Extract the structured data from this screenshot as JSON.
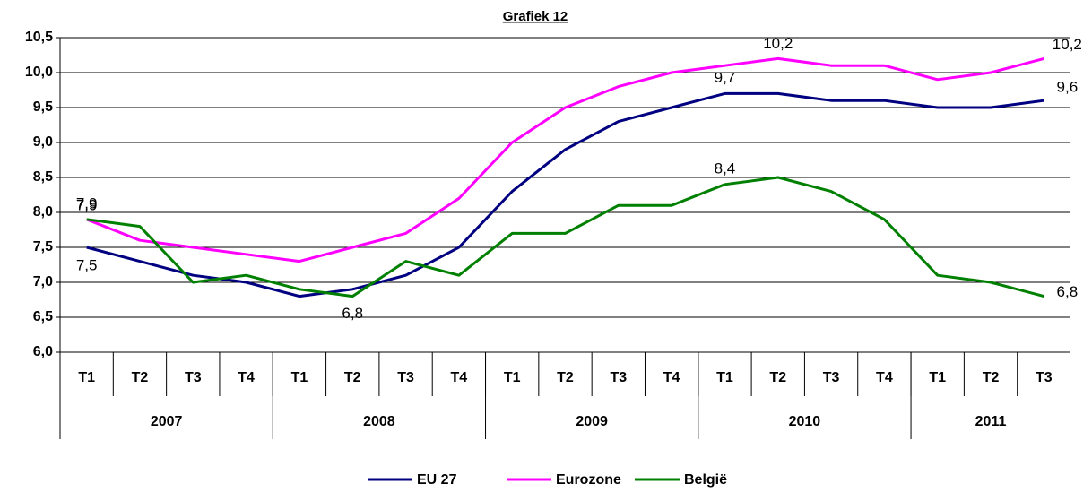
{
  "chart_data": {
    "type": "line",
    "title": "Grafiek 12",
    "categories": [
      "T1",
      "T2",
      "T3",
      "T4",
      "T1",
      "T2",
      "T3",
      "T4",
      "T1",
      "T2",
      "T3",
      "T4",
      "T1",
      "T2",
      "T3",
      "T4",
      "T1",
      "T2",
      "T3"
    ],
    "groups": [
      {
        "label": "2007",
        "count": 4
      },
      {
        "label": "2008",
        "count": 4
      },
      {
        "label": "2009",
        "count": 4
      },
      {
        "label": "2010",
        "count": 4
      },
      {
        "label": "2011",
        "count": 3
      }
    ],
    "series": [
      {
        "name": "EU 27",
        "color": "#000080",
        "values": [
          7.5,
          7.3,
          7.1,
          7.0,
          6.8,
          6.9,
          7.1,
          7.5,
          8.3,
          8.9,
          9.3,
          9.5,
          9.7,
          9.7,
          9.6,
          9.6,
          9.5,
          9.5,
          9.6
        ],
        "value_labels": [
          "7,5",
          null,
          null,
          null,
          null,
          null,
          null,
          null,
          null,
          null,
          null,
          null,
          "9,7",
          null,
          null,
          null,
          null,
          null,
          "9,6"
        ]
      },
      {
        "name": "Eurozone",
        "color": "#ff00ff",
        "values": [
          7.9,
          7.6,
          7.5,
          7.4,
          7.3,
          7.5,
          7.7,
          8.2,
          9.0,
          9.5,
          9.8,
          10.0,
          10.1,
          10.2,
          10.1,
          10.1,
          9.9,
          10.0,
          10.2
        ],
        "value_labels": [
          "7,9",
          null,
          null,
          null,
          null,
          null,
          null,
          null,
          null,
          null,
          null,
          null,
          null,
          "10,2",
          null,
          null,
          null,
          null,
          "10,2"
        ]
      },
      {
        "name": "België",
        "color": "#008000",
        "values": [
          7.9,
          7.8,
          7.0,
          7.1,
          6.9,
          6.8,
          7.3,
          7.1,
          7.7,
          7.7,
          8.1,
          8.1,
          8.4,
          8.5,
          8.3,
          7.9,
          7.1,
          7.0,
          6.8
        ],
        "value_labels": [
          "7,9",
          null,
          null,
          null,
          null,
          "6,8",
          null,
          null,
          null,
          null,
          null,
          null,
          "8,4",
          null,
          null,
          null,
          null,
          null,
          "6,8"
        ]
      }
    ],
    "ylim": [
      6.0,
      10.5
    ],
    "yticks": [
      {
        "value": 6.0,
        "label": "6,0"
      },
      {
        "value": 6.5,
        "label": "6,5"
      },
      {
        "value": 7.0,
        "label": "7,0"
      },
      {
        "value": 7.5,
        "label": "7,5"
      },
      {
        "value": 8.0,
        "label": "8,0"
      },
      {
        "value": 8.5,
        "label": "8,5"
      },
      {
        "value": 9.0,
        "label": "9,0"
      },
      {
        "value": 9.5,
        "label": "9,5"
      },
      {
        "value": 10.0,
        "label": "10,0"
      },
      {
        "value": 10.5,
        "label": "10,5"
      }
    ],
    "grid": true,
    "legend": "bottom"
  }
}
